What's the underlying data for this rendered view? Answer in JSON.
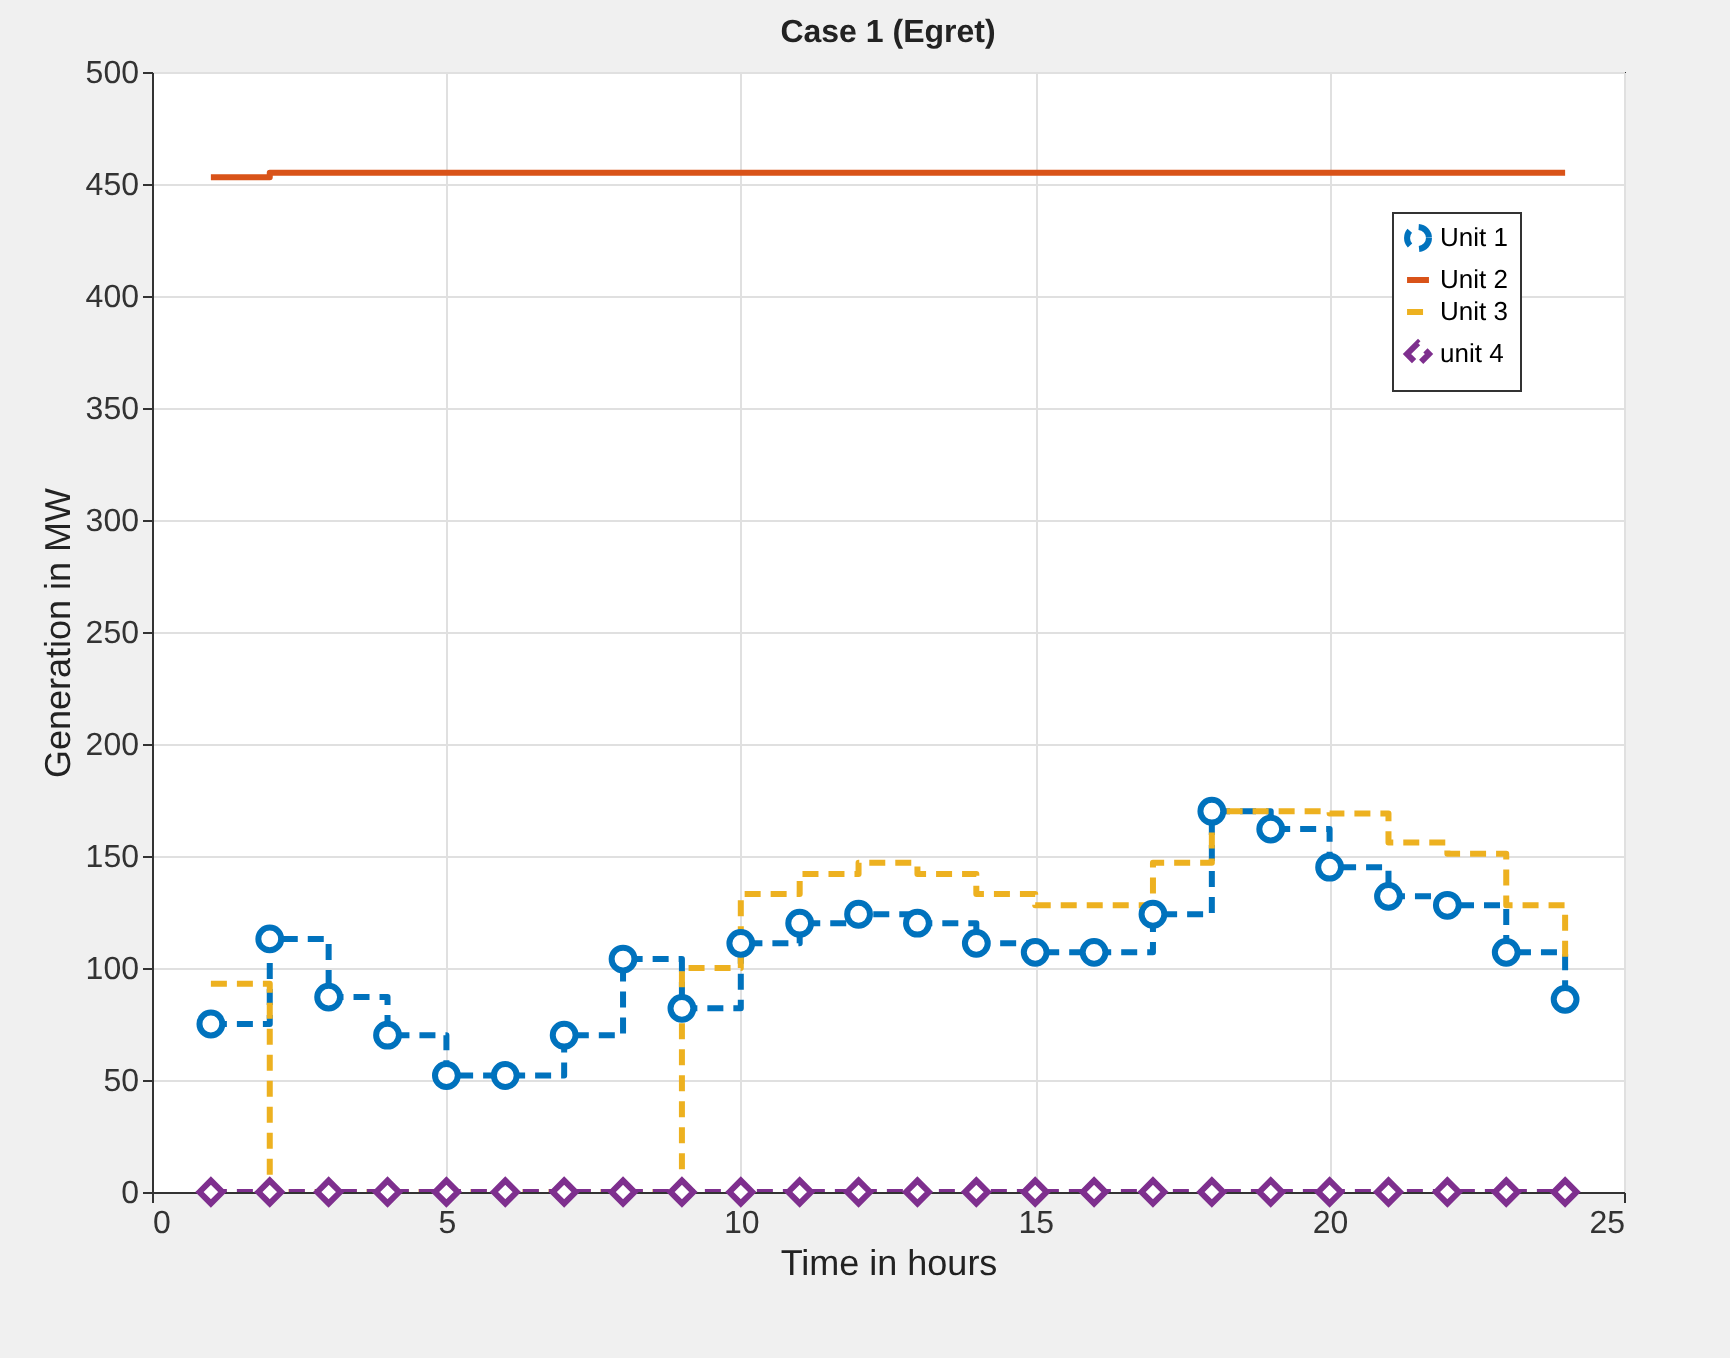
{
  "chart_data": {
    "type": "step",
    "title": "Case 1 (Egret)",
    "xlabel": "Time in hours",
    "ylabel": "Generation in MW",
    "x": [
      1,
      2,
      3,
      4,
      5,
      6,
      7,
      8,
      9,
      10,
      11,
      12,
      13,
      14,
      15,
      16,
      17,
      18,
      19,
      20,
      21,
      22,
      23,
      24
    ],
    "series": [
      {
        "name": "Unit 1",
        "color": "#0072bd",
        "marker": "circle",
        "line_style": "dashed",
        "values": [
          75,
          113,
          87,
          70,
          52,
          52,
          70,
          104,
          82,
          111,
          120,
          124,
          120,
          111,
          107,
          107,
          124,
          170,
          162,
          145,
          132,
          128,
          107,
          86
        ]
      },
      {
        "name": "Unit 2",
        "color": "#d95319",
        "marker": "none",
        "line_style": "solid",
        "values": [
          453,
          455,
          455,
          455,
          455,
          455,
          455,
          455,
          455,
          455,
          455,
          455,
          455,
          455,
          455,
          455,
          455,
          455,
          455,
          455,
          455,
          455,
          455,
          455
        ]
      },
      {
        "name": "Unit 3",
        "color": "#edb120",
        "marker": "none",
        "line_style": "dashed",
        "values": [
          93,
          0,
          0,
          0,
          0,
          0,
          0,
          0,
          100,
          133,
          142,
          147,
          142,
          133,
          128,
          128,
          147,
          170,
          170,
          169,
          156,
          151,
          128,
          105
        ]
      },
      {
        "name": "unit 4",
        "color": "#7e2f8e",
        "marker": "diamond",
        "line_style": "dashed",
        "values": [
          0,
          0,
          0,
          0,
          0,
          0,
          0,
          0,
          0,
          0,
          0,
          0,
          0,
          0,
          0,
          0,
          0,
          0,
          0,
          0,
          0,
          0,
          0,
          0
        ]
      }
    ],
    "xlim": [
      0,
      25
    ],
    "xticks": [
      0,
      5,
      10,
      15,
      20,
      25
    ],
    "ylim": [
      0,
      500
    ],
    "yticks": [
      0,
      50,
      100,
      150,
      200,
      250,
      300,
      350,
      400,
      450,
      500
    ],
    "grid": true,
    "legend": "top right"
  }
}
